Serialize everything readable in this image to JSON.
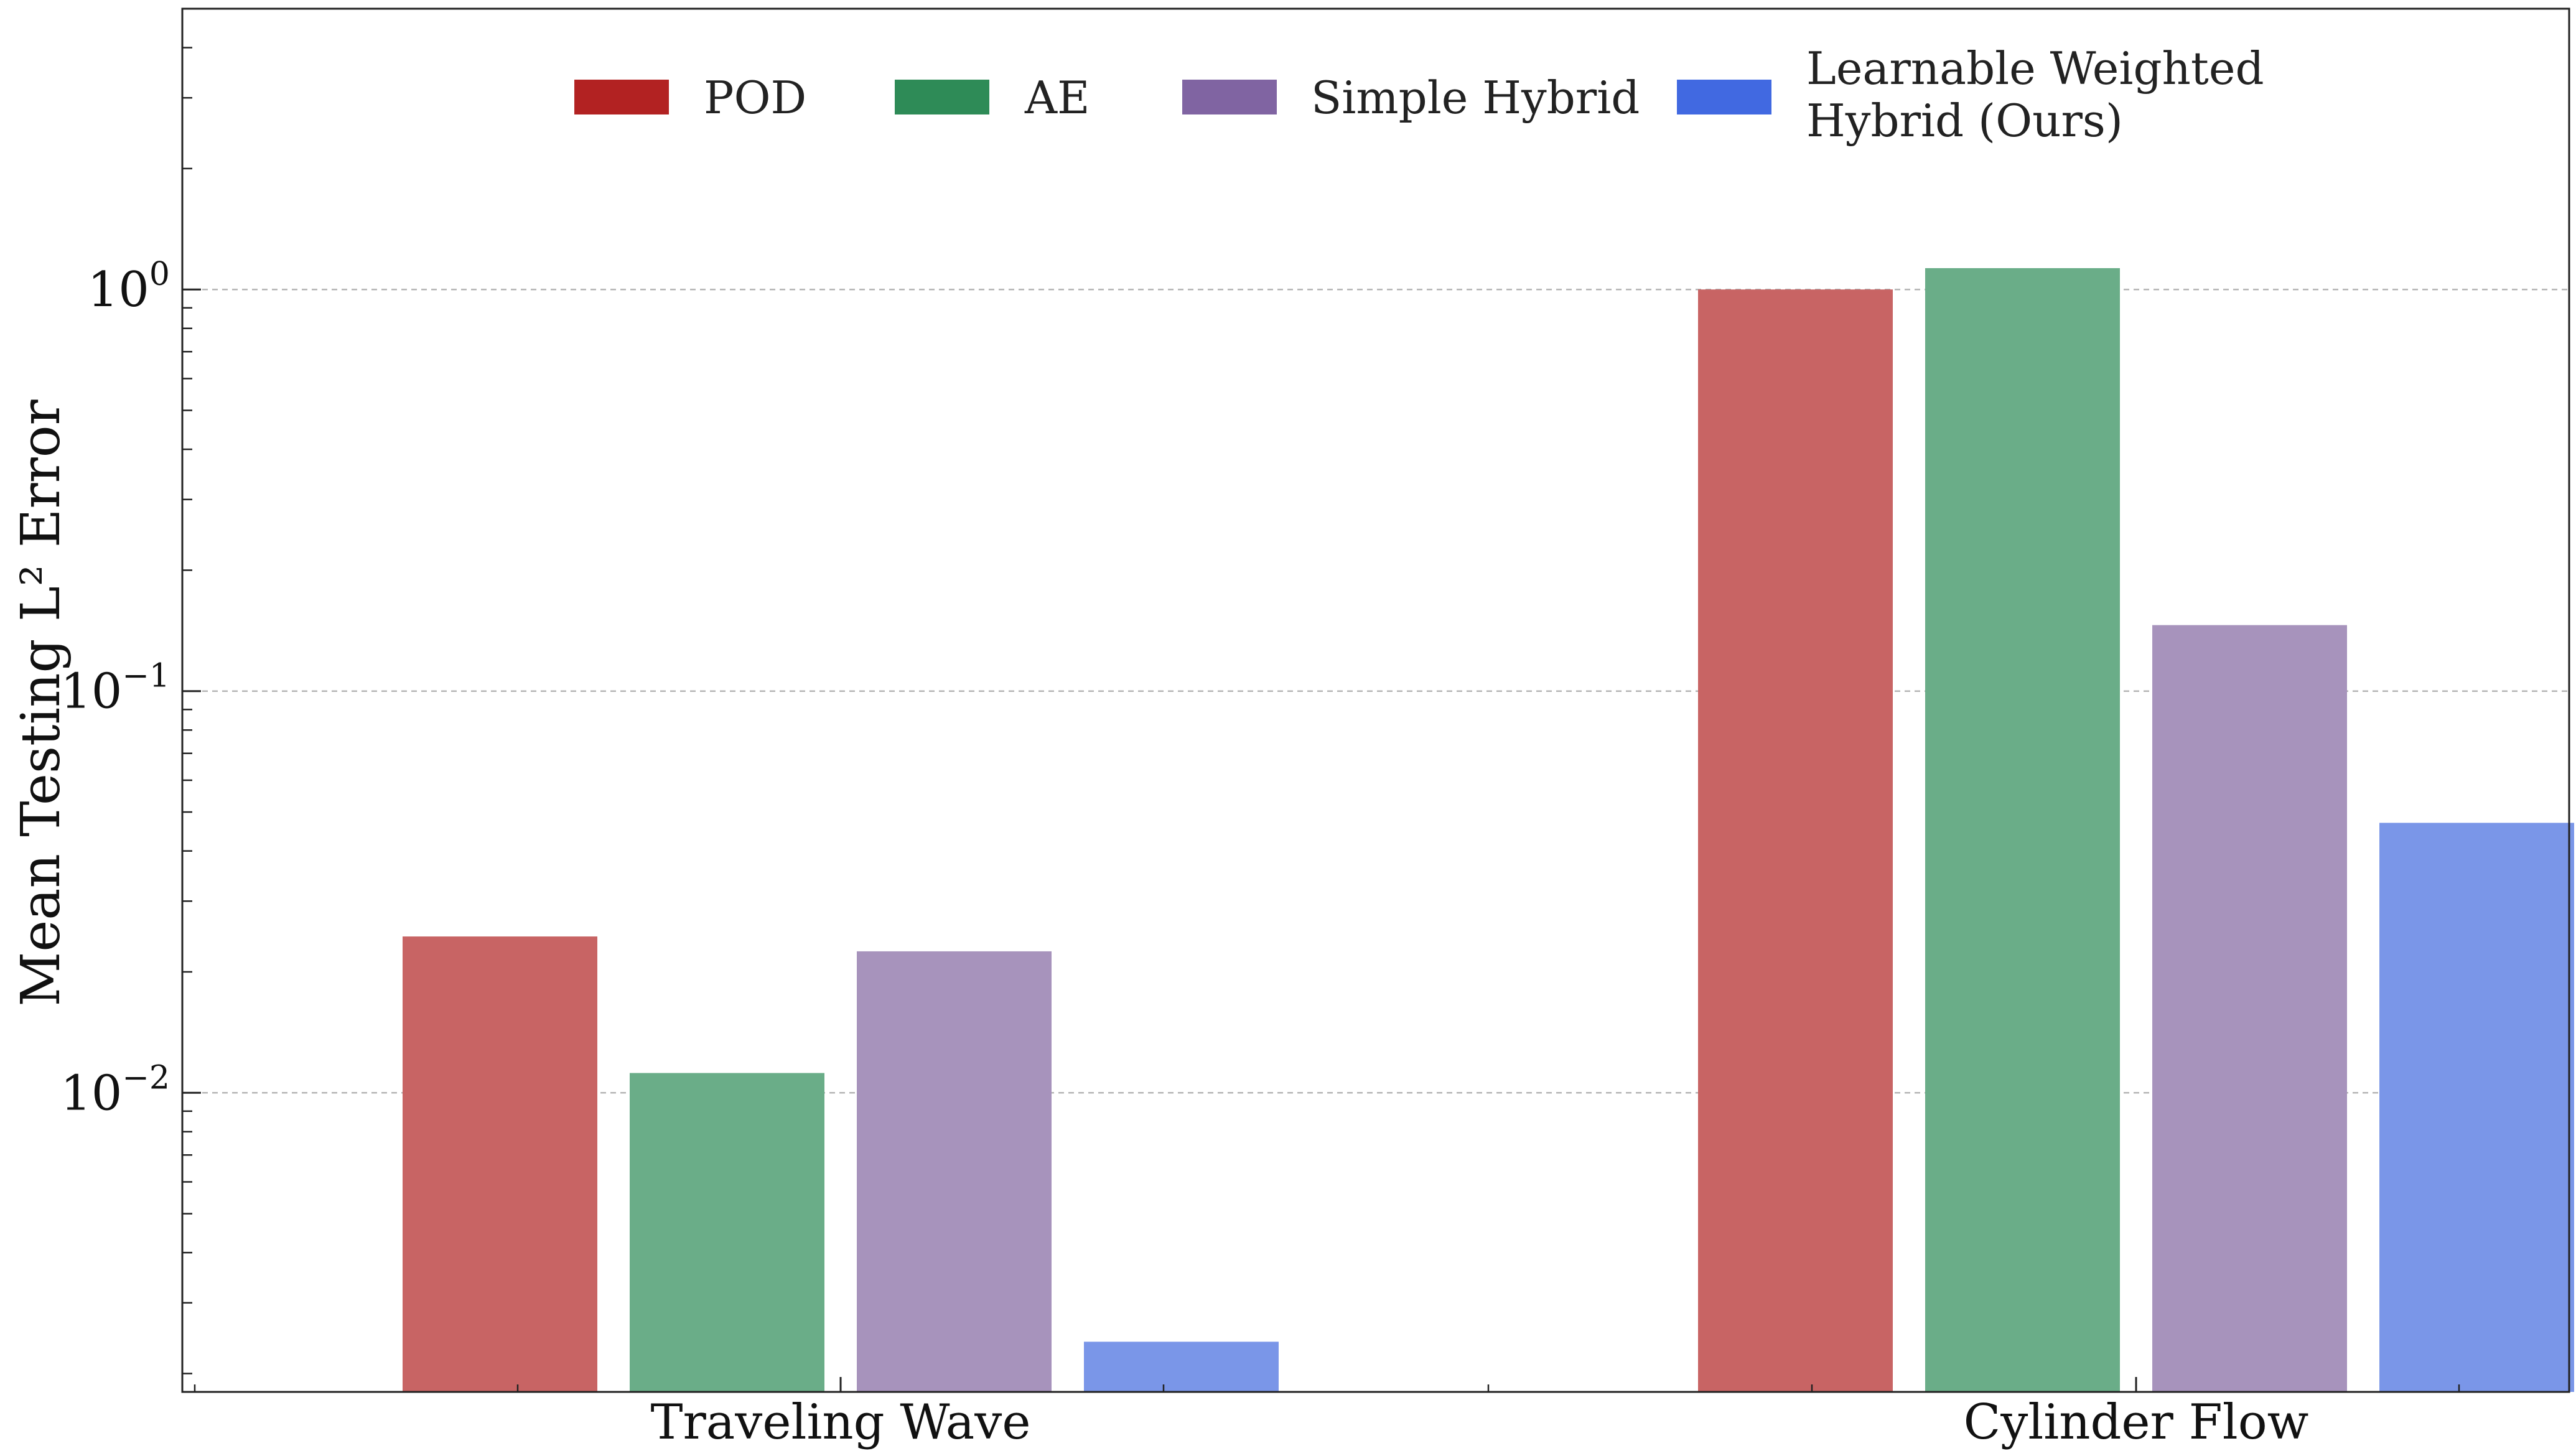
{
  "chart_data": {
    "type": "bar",
    "title": "",
    "xlabel": "",
    "ylabel": "Mean Testing L² Error",
    "yscale": "log",
    "ylim": [
      0.0018,
      5
    ],
    "yticks": [
      {
        "value": 0.01,
        "base": "10",
        "exp": "−2"
      },
      {
        "value": 0.1,
        "base": "10",
        "exp": "−1"
      },
      {
        "value": 1,
        "base": "10",
        "exp": "0"
      }
    ],
    "grid": "horizontal dashed",
    "legend_position": "top-center",
    "categories": [
      "Traveling Wave",
      "Cylinder Flow"
    ],
    "series": [
      {
        "name": "POD",
        "legend_color": "#b22222",
        "bar_color": "#c86464",
        "values": [
          0.0245,
          1.0
        ]
      },
      {
        "name": "AE",
        "legend_color": "#2e8b57",
        "bar_color": "#6aad88",
        "values": [
          0.0112,
          1.13
        ]
      },
      {
        "name": "Simple Hybrid",
        "legend_color": "#8064a2",
        "bar_color": "#a793bc",
        "values": [
          0.0225,
          0.146
        ]
      },
      {
        "name": "Learnable Weighted Hybrid (Ours)",
        "legend_lines": [
          "Learnable Weighted",
          "Hybrid (Ours)"
        ],
        "legend_color": "#4169e1",
        "bar_color": "#7a96e8",
        "values": [
          0.0024,
          0.047
        ]
      }
    ]
  }
}
